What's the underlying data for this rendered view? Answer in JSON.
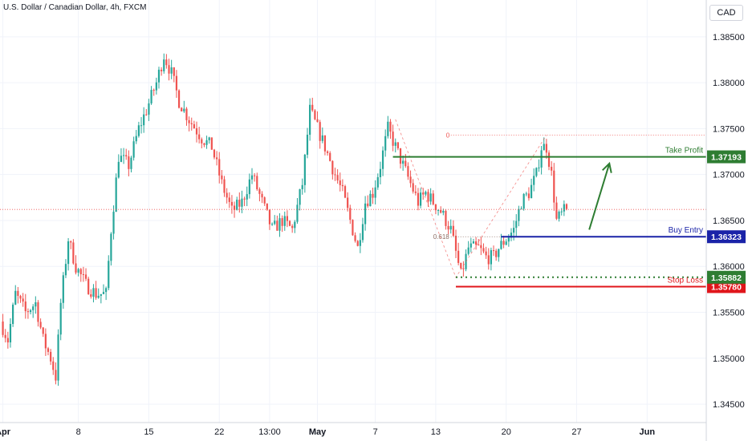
{
  "header": {
    "title": "U.S. Dollar / Canadian Dollar, 4h, FXCM",
    "currency": "CAD"
  },
  "colors": {
    "up": "#26a69a",
    "down": "#ef5350",
    "tp": "#2e7d32",
    "entry": "#1a23a8",
    "sl": "#e0161b",
    "grid": "#f0f3fa",
    "axis": "#131722"
  },
  "chart_data": {
    "type": "candlestick",
    "title": "U.S. Dollar / Canadian Dollar, 4h, FXCM",
    "xlabel": "",
    "ylabel": "",
    "ylim": [
      1.343,
      1.389
    ],
    "n_bars": 280,
    "x_ticks": [
      {
        "label": "Apr",
        "bar": 0
      },
      {
        "label": "8",
        "bar": 30
      },
      {
        "label": "15",
        "bar": 58
      },
      {
        "label": "22",
        "bar": 86
      },
      {
        "label": "13:00",
        "bar": 106
      },
      {
        "label": "May",
        "bar": 125
      },
      {
        "label": "7",
        "bar": 148
      },
      {
        "label": "13",
        "bar": 172
      },
      {
        "label": "20",
        "bar": 200
      },
      {
        "label": "27",
        "bar": 228
      },
      {
        "label": "Jun",
        "bar": 256
      }
    ],
    "y_ticks": [
      "1.38500",
      "1.38000",
      "1.37500",
      "1.37000",
      "1.36500",
      "1.36000",
      "1.35500",
      "1.35000",
      "1.34500"
    ],
    "y_tick_values": [
      1.385,
      1.38,
      1.375,
      1.37,
      1.365,
      1.36,
      1.355,
      1.35,
      1.345
    ],
    "path": [
      [
        0,
        1.354
      ],
      [
        3,
        1.352
      ],
      [
        6,
        1.357
      ],
      [
        10,
        1.355
      ],
      [
        14,
        1.356
      ],
      [
        17,
        1.352
      ],
      [
        20,
        1.35
      ],
      [
        22,
        1.348
      ],
      [
        24,
        1.356
      ],
      [
        27,
        1.363
      ],
      [
        30,
        1.36
      ],
      [
        34,
        1.358
      ],
      [
        38,
        1.357
      ],
      [
        42,
        1.357
      ],
      [
        44,
        1.364
      ],
      [
        47,
        1.372
      ],
      [
        51,
        1.371
      ],
      [
        55,
        1.375
      ],
      [
        58,
        1.377
      ],
      [
        62,
        1.38
      ],
      [
        65,
        1.383
      ],
      [
        68,
        1.381
      ],
      [
        71,
        1.378
      ],
      [
        75,
        1.376
      ],
      [
        80,
        1.374
      ],
      [
        84,
        1.373
      ],
      [
        88,
        1.369
      ],
      [
        92,
        1.366
      ],
      [
        96,
        1.367
      ],
      [
        100,
        1.37
      ],
      [
        104,
        1.367
      ],
      [
        108,
        1.364
      ],
      [
        112,
        1.365
      ],
      [
        116,
        1.364
      ],
      [
        120,
        1.369
      ],
      [
        123,
        1.377
      ],
      [
        126,
        1.375
      ],
      [
        129,
        1.373
      ],
      [
        133,
        1.37
      ],
      [
        136,
        1.368
      ],
      [
        139,
        1.365
      ],
      [
        142,
        1.362
      ],
      [
        145,
        1.367
      ],
      [
        148,
        1.368
      ],
      [
        151,
        1.371
      ],
      [
        154,
        1.375
      ],
      [
        157,
        1.373
      ],
      [
        160,
        1.371
      ],
      [
        163,
        1.369
      ],
      [
        166,
        1.367
      ],
      [
        169,
        1.368
      ],
      [
        172,
        1.367
      ],
      [
        175,
        1.366
      ],
      [
        179,
        1.364
      ],
      [
        183,
        1.359
      ],
      [
        186,
        1.362
      ],
      [
        190,
        1.362
      ],
      [
        193,
        1.361
      ],
      [
        196,
        1.361
      ],
      [
        198,
        1.362
      ],
      [
        201,
        1.363
      ],
      [
        204,
        1.364
      ],
      [
        207,
        1.367
      ],
      [
        210,
        1.368
      ],
      [
        213,
        1.37
      ],
      [
        215,
        1.373
      ],
      [
        217,
        1.373
      ],
      [
        219,
        1.37
      ],
      [
        221,
        1.365
      ],
      [
        224,
        1.366
      ]
    ],
    "levels": [
      {
        "name": "Take Profit",
        "value": 1.37193,
        "label": "1.37193",
        "from_bar": 155
      },
      {
        "name": "Buy Entry",
        "value": 1.36323,
        "label": "1.36323",
        "from_bar": 198
      },
      {
        "name": "Stop Loss",
        "value": 1.3578,
        "label": "1.35780",
        "from_bar": 180
      }
    ],
    "price_labels": [
      {
        "label": "1.35882",
        "value": 1.35882
      }
    ],
    "fib": {
      "zero_label": "0",
      "fib_label": "0.618",
      "zero_value": 1.3743,
      "fib_value": 1.36323,
      "from_bar": 178,
      "to_bar": 262
    },
    "low_dotted": {
      "value": 1.35882,
      "from_bar": 180
    },
    "last_price": 1.3662,
    "arrow": {
      "from_bar": 233,
      "from_value": 1.364,
      "to_bar": 241,
      "to_value": 1.3712
    }
  }
}
